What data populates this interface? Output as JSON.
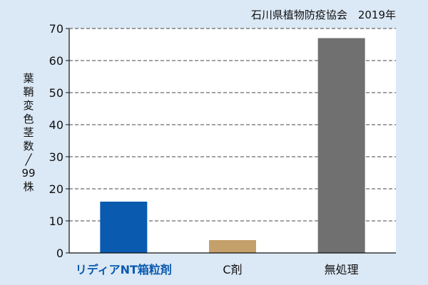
{
  "chart_data": {
    "type": "bar",
    "source_note": "石川県植物防疫協会　2019年",
    "ylabel": "葉鞘変色茎数／99株",
    "ylim": [
      0,
      70
    ],
    "yticks": [
      0,
      10,
      20,
      30,
      40,
      50,
      60,
      70
    ],
    "grid": true,
    "categories": [
      "リディアNT箱粒剤",
      "C剤",
      "無処理"
    ],
    "values": [
      16,
      4,
      67
    ],
    "colors": [
      "#0a5ab0",
      "#c4a06a",
      "#707070"
    ],
    "highlight_category_color": "#0a5ab0"
  }
}
